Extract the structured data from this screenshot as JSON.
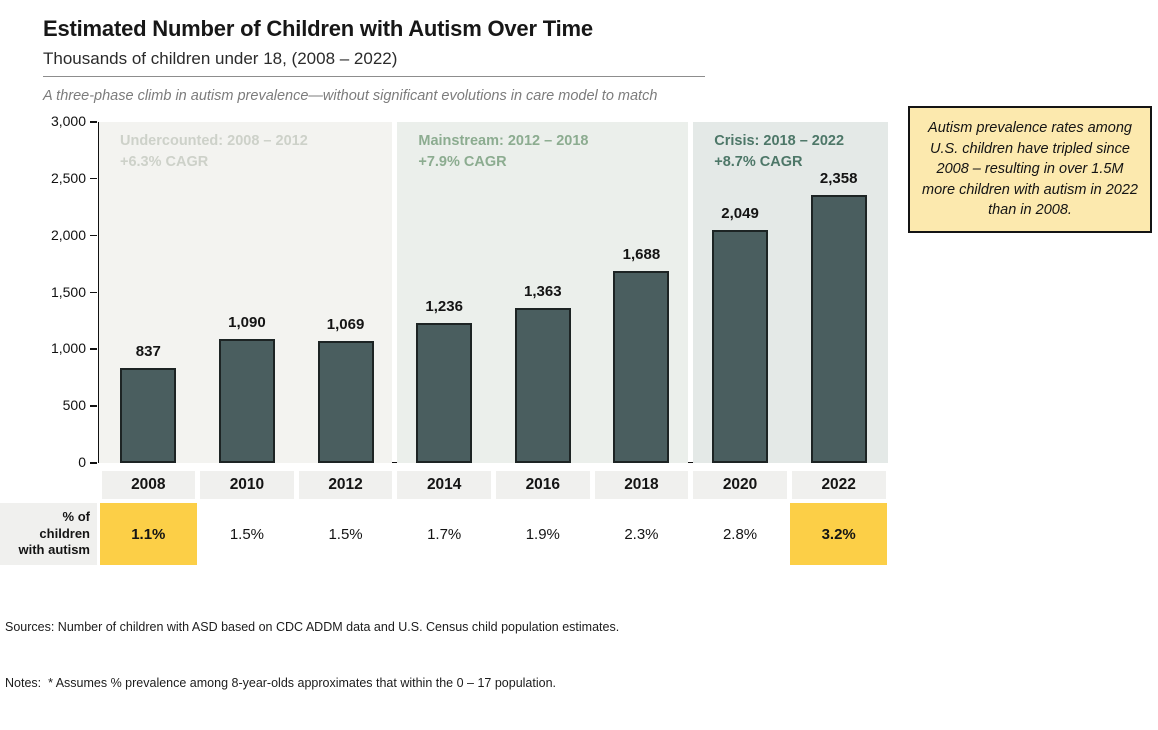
{
  "header": {
    "title": "Estimated Number of Children with Autism Over Time",
    "subtitle": "Thousands of children under 18, (2008 – 2022)",
    "note": "A three-phase climb in autism prevalence—without significant evolutions in care model to match"
  },
  "callout": {
    "text": "Autism prevalence rates among U.S. children have tripled since 2008 – resulting in over 1.5M more children with autism in 2022 than in 2008."
  },
  "chart_data": {
    "type": "bar",
    "title": "Estimated Number of Children with Autism Over Time",
    "subtitle": "Thousands of children under 18, (2008 – 2022)",
    "categories": [
      "2008",
      "2010",
      "2012",
      "2014",
      "2016",
      "2018",
      "2020",
      "2022"
    ],
    "values": [
      837,
      1090,
      1069,
      1236,
      1363,
      1688,
      2049,
      2358
    ],
    "value_labels": [
      "837",
      "1,090",
      "1,069",
      "1,236",
      "1,363",
      "1,688",
      "2,049",
      "2,358"
    ],
    "ylim": [
      0,
      3000
    ],
    "yticks": [
      0,
      500,
      1000,
      1500,
      2000,
      2500,
      3000
    ],
    "ytick_labels": [
      "0",
      "500",
      "1,000",
      "1,500",
      "2,000",
      "2,500",
      "3,000"
    ],
    "grid": false,
    "legend": "none",
    "bar_color": "#4a5e5f",
    "bar_border_color": "#1d2424",
    "phases": [
      {
        "label": "Undercounted: 2008 – 2012",
        "cagr": "+6.3% CAGR",
        "start_col": 0,
        "end_col": 3,
        "bg": "#f3f3f0",
        "color": "#cdd1c9"
      },
      {
        "label": "Mainstream: 2012 – 2018",
        "cagr": "+7.9% CAGR",
        "start_col": 3,
        "end_col": 6,
        "bg": "#ebefeb",
        "color": "#8cac90"
      },
      {
        "label": "Crisis: 2018 – 2022",
        "cagr": "+8.7% CAGR",
        "start_col": 6,
        "end_col": 8,
        "bg": "#e4e9e7",
        "color": "#4d7768"
      }
    ]
  },
  "table": {
    "row_header_lines": [
      "% of",
      "children",
      "with autism"
    ],
    "values": [
      "1.1%",
      "1.5%",
      "1.5%",
      "1.7%",
      "1.9%",
      "2.3%",
      "2.8%",
      "3.2%"
    ],
    "highlighted_columns": [
      0,
      7
    ],
    "highlight_color": "#fccf47"
  },
  "footer": {
    "sources": "Sources: Number of children with ASD based on CDC ADDM data and U.S. Census child population estimates.",
    "notes": "Notes:  * Assumes % prevalence among 8-year-olds approximates that within the 0 – 17 population."
  }
}
